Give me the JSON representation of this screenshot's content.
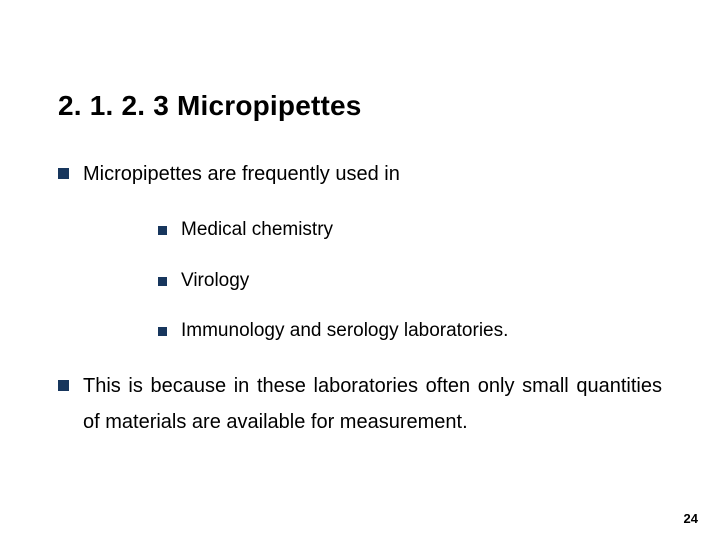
{
  "colors": {
    "bullet": "#17365d",
    "text": "#000000",
    "background": "#ffffff"
  },
  "title": "2. 1. 2. 3  Micropipettes",
  "points": [
    {
      "text": "Micropipettes are frequently used in",
      "justify": false
    },
    {
      "text": "This is because in these laboratories often only small quantities of materials are available for measurement.",
      "justify": true
    }
  ],
  "subpoints": [
    "Medical chemistry",
    "Virology",
    "Immunology and serology laboratories."
  ],
  "pageNumber": "24"
}
